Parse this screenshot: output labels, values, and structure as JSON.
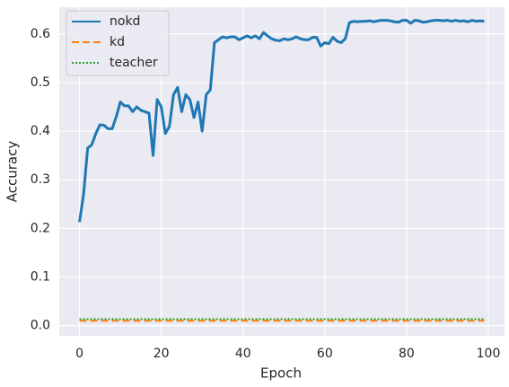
{
  "chart_data": {
    "type": "line",
    "xlabel": "Epoch",
    "ylabel": "Accuracy",
    "x": [
      0,
      1,
      2,
      3,
      4,
      5,
      6,
      7,
      8,
      9,
      10,
      11,
      12,
      13,
      14,
      15,
      16,
      17,
      18,
      19,
      20,
      21,
      22,
      23,
      24,
      25,
      26,
      27,
      28,
      29,
      30,
      31,
      32,
      33,
      34,
      35,
      36,
      37,
      38,
      39,
      40,
      41,
      42,
      43,
      44,
      45,
      46,
      47,
      48,
      49,
      50,
      51,
      52,
      53,
      54,
      55,
      56,
      57,
      58,
      59,
      60,
      61,
      62,
      63,
      64,
      65,
      66,
      67,
      68,
      69,
      70,
      71,
      72,
      73,
      74,
      75,
      76,
      77,
      78,
      79,
      80,
      81,
      82,
      83,
      84,
      85,
      86,
      87,
      88,
      89,
      90,
      91,
      92,
      93,
      94,
      95,
      96,
      97,
      98,
      99
    ],
    "series": [
      {
        "name": "nokd",
        "color": "#1f77b4",
        "style": "solid",
        "values": [
          0.213,
          0.27,
          0.365,
          0.372,
          0.395,
          0.413,
          0.412,
          0.405,
          0.405,
          0.43,
          0.46,
          0.452,
          0.452,
          0.44,
          0.45,
          0.443,
          0.44,
          0.437,
          0.35,
          0.465,
          0.45,
          0.395,
          0.41,
          0.475,
          0.49,
          0.44,
          0.475,
          0.465,
          0.428,
          0.46,
          0.4,
          0.475,
          0.485,
          0.582,
          0.588,
          0.594,
          0.592,
          0.594,
          0.594,
          0.588,
          0.592,
          0.596,
          0.592,
          0.596,
          0.59,
          0.603,
          0.596,
          0.59,
          0.587,
          0.586,
          0.59,
          0.588,
          0.59,
          0.594,
          0.59,
          0.588,
          0.588,
          0.593,
          0.593,
          0.575,
          0.582,
          0.58,
          0.593,
          0.585,
          0.582,
          0.59,
          0.623,
          0.626,
          0.625,
          0.626,
          0.626,
          0.627,
          0.625,
          0.627,
          0.628,
          0.628,
          0.627,
          0.625,
          0.624,
          0.628,
          0.628,
          0.622,
          0.628,
          0.627,
          0.624,
          0.625,
          0.627,
          0.628,
          0.628,
          0.627,
          0.628,
          0.626,
          0.628,
          0.626,
          0.627,
          0.625,
          0.628,
          0.626,
          0.627,
          0.626
        ]
      },
      {
        "name": "kd",
        "color": "#ff7f0e",
        "style": "dashed",
        "values": [
          0.01,
          0.01,
          0.01,
          0.01,
          0.01,
          0.01,
          0.01,
          0.01,
          0.01,
          0.01,
          0.01,
          0.01,
          0.01,
          0.01,
          0.01,
          0.01,
          0.01,
          0.01,
          0.01,
          0.01,
          0.01,
          0.01,
          0.01,
          0.01,
          0.01,
          0.01,
          0.01,
          0.01,
          0.01,
          0.01,
          0.01,
          0.01,
          0.01,
          0.01,
          0.01,
          0.01,
          0.01,
          0.01,
          0.01,
          0.01,
          0.01,
          0.01,
          0.01,
          0.01,
          0.01,
          0.01,
          0.01,
          0.01,
          0.01,
          0.01,
          0.01,
          0.01,
          0.01,
          0.01,
          0.01,
          0.01,
          0.01,
          0.01,
          0.01,
          0.01,
          0.01,
          0.01,
          0.01,
          0.01,
          0.01,
          0.01,
          0.01,
          0.01,
          0.01,
          0.01,
          0.01,
          0.01,
          0.01,
          0.01,
          0.01,
          0.01,
          0.01,
          0.01,
          0.01,
          0.01,
          0.01,
          0.01,
          0.01,
          0.01,
          0.01,
          0.01,
          0.01,
          0.01,
          0.01,
          0.01,
          0.01,
          0.01,
          0.01,
          0.01,
          0.01,
          0.01,
          0.01,
          0.01,
          0.01,
          0.01
        ]
      },
      {
        "name": "teacher",
        "color": "#2ca02c",
        "style": "dotted",
        "values": [
          0.0135,
          0.0135,
          0.0135,
          0.0135,
          0.0135,
          0.0135,
          0.0135,
          0.0135,
          0.0135,
          0.0135,
          0.0135,
          0.0135,
          0.0135,
          0.0135,
          0.0135,
          0.0135,
          0.0135,
          0.0135,
          0.0135,
          0.0135,
          0.0135,
          0.0135,
          0.0135,
          0.0135,
          0.0135,
          0.0135,
          0.0135,
          0.0135,
          0.0135,
          0.0135,
          0.0135,
          0.0135,
          0.0135,
          0.0135,
          0.0135,
          0.0135,
          0.0135,
          0.0135,
          0.0135,
          0.0135,
          0.0135,
          0.0135,
          0.0135,
          0.0135,
          0.0135,
          0.0135,
          0.0135,
          0.0135,
          0.0135,
          0.0135,
          0.0135,
          0.0135,
          0.0135,
          0.0135,
          0.0135,
          0.0135,
          0.0135,
          0.0135,
          0.0135,
          0.0135,
          0.0135,
          0.0135,
          0.0135,
          0.0135,
          0.0135,
          0.0135,
          0.0135,
          0.0135,
          0.0135,
          0.0135,
          0.0135,
          0.0135,
          0.0135,
          0.0135,
          0.0135,
          0.0135,
          0.0135,
          0.0135,
          0.0135,
          0.0135,
          0.0135,
          0.0135,
          0.0135,
          0.0135,
          0.0135,
          0.0135,
          0.0135,
          0.0135,
          0.0135,
          0.0135,
          0.0135,
          0.0135,
          0.0135,
          0.0135,
          0.0135,
          0.0135,
          0.0135,
          0.0135,
          0.0135,
          0.0135
        ]
      }
    ],
    "xlim": [
      -4.95,
      103.95
    ],
    "xticks": [
      0,
      20,
      40,
      60,
      80,
      100
    ],
    "ylim": [
      -0.021,
      0.655
    ],
    "yticks": [
      {
        "value": 0,
        "label": "0.0"
      },
      0.1,
      0.2,
      0.3,
      0.4,
      0.5,
      0.6
    ],
    "grid": true,
    "legend": "upper left"
  }
}
